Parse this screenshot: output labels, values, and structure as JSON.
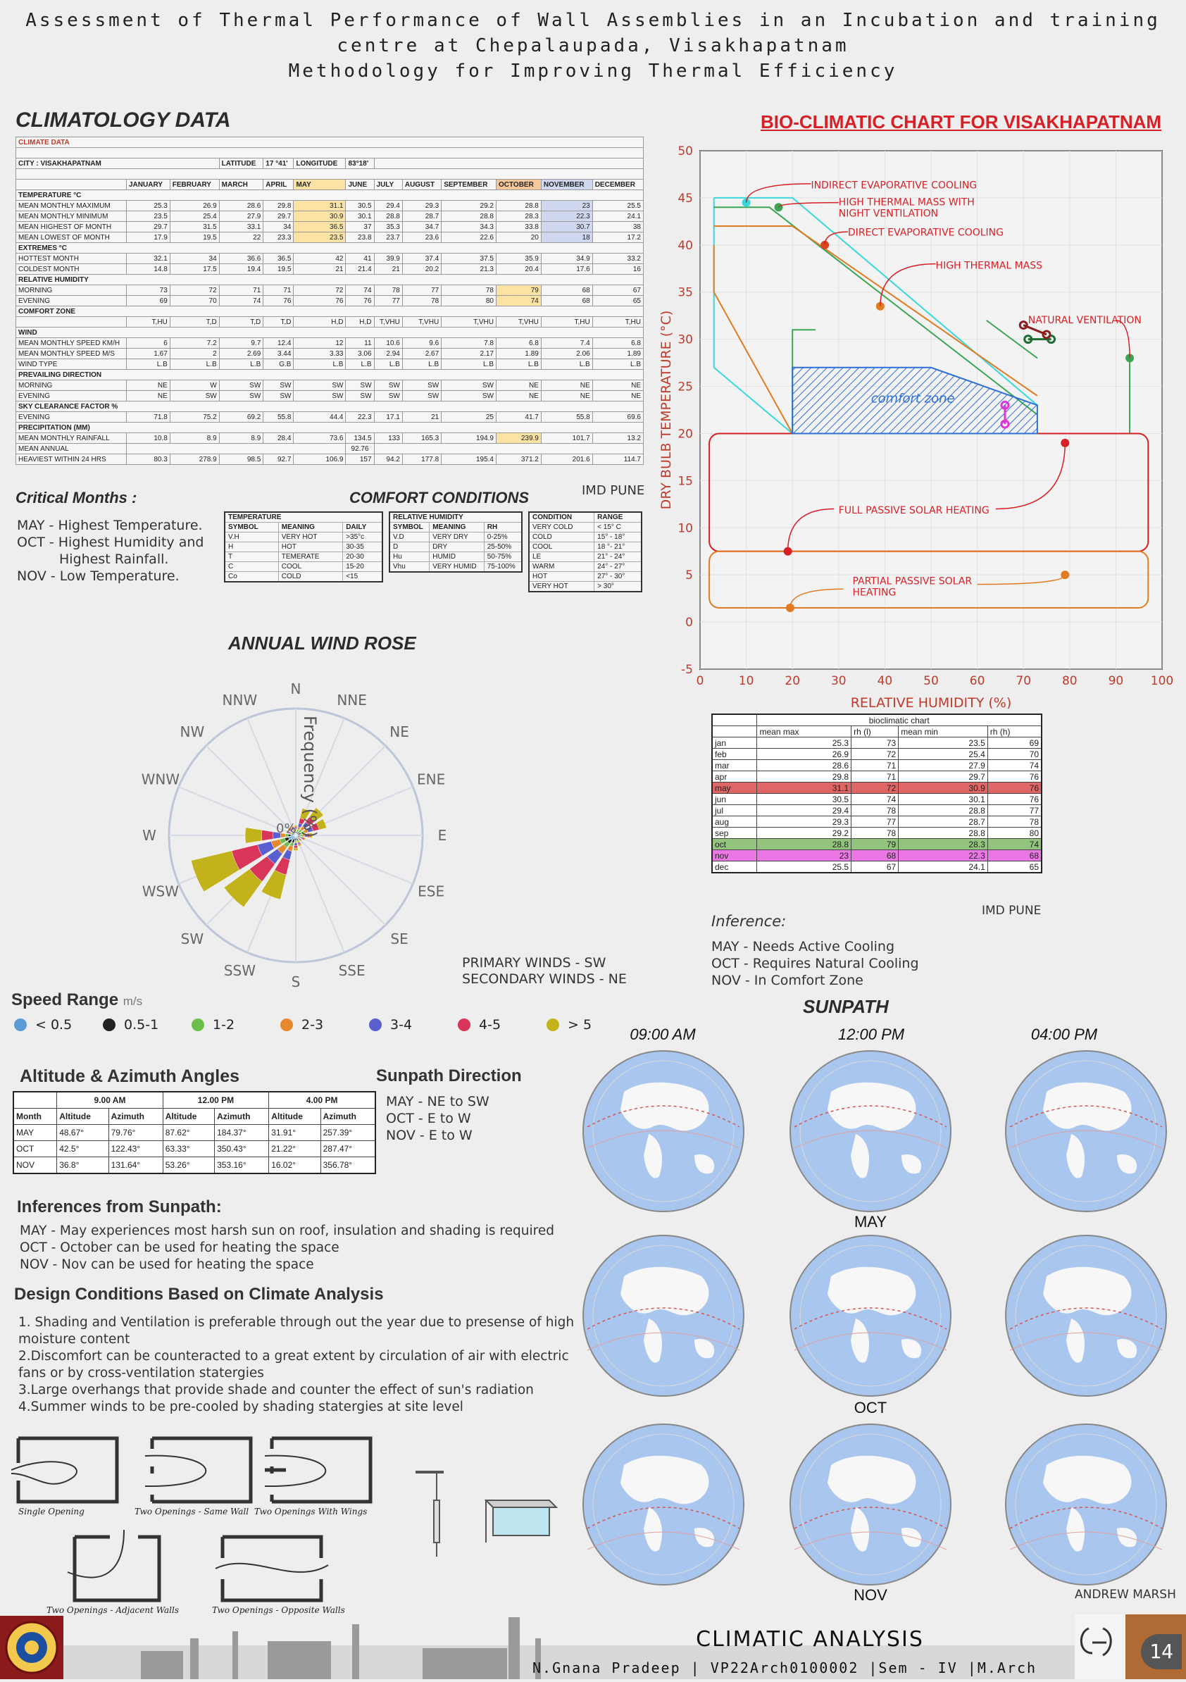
{
  "header": {
    "line1": "Assessment of Thermal Performance of Wall Assemblies in an Incubation and training",
    "line2": "centre at Chepalaupada, Visakhapatnam",
    "line3": "Methodology for Improving Thermal Efficiency"
  },
  "climatology": {
    "heading": "CLIMATOLOGY DATA",
    "table_title": "CLIMATE DATA",
    "city": "CITY : VISAKHAPATNAM",
    "latitude_label": "LATITUDE",
    "latitude": "17 °41'",
    "longitude_label": "LONGITUDE",
    "longitude": "83°18'",
    "months": [
      "JANUARY",
      "FEBRUARY",
      "MARCH",
      "APRIL",
      "MAY",
      "JUNE",
      "JULY",
      "AUGUST",
      "SEPTEMBER",
      "OCTOBER",
      "NOVEMBER",
      "DECEMBER"
    ],
    "rows": [
      {
        "type": "section",
        "label": "TEMPERATURE °C"
      },
      {
        "type": "data",
        "label": "MEAN MONTHLY MAXIMUM",
        "values": [
          "25.3",
          "26.9",
          "28.6",
          "29.8",
          "31.1",
          "30.5",
          "29.4",
          "29.3",
          "29.2",
          "28.8",
          "23",
          "25.5"
        ]
      },
      {
        "type": "data",
        "label": "MEAN MONTHLY MINIMUM",
        "values": [
          "23.5",
          "25.4",
          "27.9",
          "29.7",
          "30.9",
          "30.1",
          "28.8",
          "28.7",
          "28.8",
          "28.3",
          "22.3",
          "24.1"
        ]
      },
      {
        "type": "data",
        "label": "MEAN HIGHEST OF MONTH",
        "values": [
          "29.7",
          "31.5",
          "33.1",
          "34",
          "36.5",
          "37",
          "35.3",
          "34.7",
          "34.3",
          "33.8",
          "30.7",
          "38"
        ]
      },
      {
        "type": "data",
        "label": "MEAN LOWEST OF MONTH",
        "values": [
          "17.9",
          "19.5",
          "22",
          "23.3",
          "23.5",
          "23.8",
          "23.7",
          "23.6",
          "22.6",
          "20",
          "18",
          "17.2"
        ]
      },
      {
        "type": "section",
        "label": "EXTREMES °C"
      },
      {
        "type": "data",
        "label": "HOTTEST MONTH",
        "values": [
          "32.1",
          "34",
          "36.6",
          "36.5",
          "42",
          "41",
          "39.9",
          "37.4",
          "37.5",
          "35.9",
          "34.9",
          "33.2"
        ]
      },
      {
        "type": "data",
        "label": "COLDEST MONTH",
        "values": [
          "14.8",
          "17.5",
          "19.4",
          "19.5",
          "21",
          "21.4",
          "21",
          "20.2",
          "21.3",
          "20.4",
          "17.6",
          "16"
        ]
      },
      {
        "type": "section",
        "label": "RELATIVE HUMIDITY"
      },
      {
        "type": "data",
        "label": "MORNING",
        "values": [
          "73",
          "72",
          "71",
          "71",
          "72",
          "74",
          "78",
          "77",
          "78",
          "79",
          "68",
          "67"
        ]
      },
      {
        "type": "data",
        "label": "EVENING",
        "values": [
          "69",
          "70",
          "74",
          "76",
          "76",
          "76",
          "77",
          "78",
          "80",
          "74",
          "68",
          "65"
        ]
      },
      {
        "type": "section",
        "label": "COMFORT ZONE"
      },
      {
        "type": "data",
        "label": "",
        "values": [
          "T,HU",
          "T,D",
          "T,D",
          "T,D",
          "H,D",
          "H,D",
          "T,VHU",
          "T,VHU",
          "T,VHU",
          "T,VHU",
          "T,HU",
          "T,HU"
        ]
      },
      {
        "type": "section",
        "label": "WIND"
      },
      {
        "type": "data",
        "label": "MEAN MONTHLY SPEED KM/H",
        "values": [
          "6",
          "7.2",
          "9.7",
          "12.4",
          "12",
          "11",
          "10.6",
          "9.6",
          "7.8",
          "6.8",
          "7.4",
          "6.8"
        ]
      },
      {
        "type": "data",
        "label": "MEAN MONTHLY SPEED M/S",
        "values": [
          "1.67",
          "2",
          "2.69",
          "3.44",
          "3.33",
          "3.06",
          "2.94",
          "2.67",
          "2.17",
          "1.89",
          "2.06",
          "1.89"
        ]
      },
      {
        "type": "data",
        "label": "WIND TYPE",
        "values": [
          "L.B",
          "L.B",
          "L.B",
          "G.B",
          "L.B",
          "L.B",
          "L.B",
          "L.B",
          "L.B",
          "L.B",
          "L.B",
          "L.B"
        ]
      },
      {
        "type": "section",
        "label": "PREVAILING DIRECTION"
      },
      {
        "type": "data",
        "label": "MORNING",
        "values": [
          "NE",
          "W",
          "SW",
          "SW",
          "SW",
          "SW",
          "SW",
          "SW",
          "SW",
          "NE",
          "NE",
          "NE"
        ]
      },
      {
        "type": "data",
        "label": "EVENING",
        "values": [
          "NE",
          "SW",
          "SW",
          "SW",
          "SW",
          "SW",
          "SW",
          "SW",
          "SW",
          "NE",
          "NE",
          "NE"
        ]
      },
      {
        "type": "section",
        "label": "SKY CLEARANCE FACTOR %"
      },
      {
        "type": "data",
        "label": "EVENING",
        "values": [
          "71.8",
          "75.2",
          "69.2",
          "55.8",
          "44.4",
          "22.3",
          "17.1",
          "21",
          "25",
          "41.7",
          "55.8",
          "69.6"
        ]
      },
      {
        "type": "section",
        "label": "PRECIPITATION (MM)"
      },
      {
        "type": "data",
        "label": "MEAN MONTHLY RAINFALL",
        "values": [
          "10.8",
          "8.9",
          "8.9",
          "28.4",
          "73.6",
          "134.5",
          "133",
          "165.3",
          "194.9",
          "239.9",
          "101.7",
          "13.2"
        ]
      },
      {
        "type": "annual",
        "label": "MEAN ANNUAL",
        "value": "92.76"
      },
      {
        "type": "data",
        "label": "HEAVIEST WITHIN 24 HRS",
        "values": [
          "80.3",
          "278.9",
          "98.5",
          "92.7",
          "106.9",
          "157",
          "94.2",
          "177.8",
          "195.4",
          "371.2",
          "201.6",
          "114.7"
        ]
      }
    ],
    "source": "IMD PUNE"
  },
  "critical": {
    "heading": "Critical Months :",
    "lines": [
      "MAY - Highest Temperature.",
      "OCT - Highest Humidity and",
      "Highest Rainfall.",
      "NOV - Low Temperature."
    ]
  },
  "comfort": {
    "heading": "COMFORT CONDITIONS",
    "temp": {
      "title": "TEMPERATURE",
      "headers": [
        "SYMBOL",
        "MEANING",
        "DAILY"
      ],
      "rows": [
        [
          "V.H",
          "VERY HOT",
          ">35°c"
        ],
        [
          "H",
          "HOT",
          "30-35"
        ],
        [
          "T",
          "TEMERATE",
          "20-30"
        ],
        [
          "C",
          "COOL",
          "15-20"
        ],
        [
          "Co",
          "COLD",
          "<15"
        ]
      ]
    },
    "rh": {
      "title": "RELATIVE HUMIDITY",
      "headers": [
        "SYMBOL",
        "MEANING",
        "RH"
      ],
      "rows": [
        [
          "V.D",
          "VERY DRY",
          "0-25%"
        ],
        [
          "D",
          "DRY",
          "25-50%"
        ],
        [
          "Hu",
          "HUMID",
          "50-75%"
        ],
        [
          "Vhu",
          "VERY HUMID",
          "75-100%"
        ]
      ]
    },
    "cond": {
      "headers": [
        "CONDITION",
        "RANGE"
      ],
      "rows": [
        [
          "VERY COLD",
          "< 15° C"
        ],
        [
          "COLD",
          "15° - 18°"
        ],
        [
          "COOL",
          "18 °- 21°"
        ],
        [
          "LE",
          "21° - 24°"
        ],
        [
          "WARM",
          "24° - 27°"
        ],
        [
          "HOT",
          "27° - 30°"
        ],
        [
          "VERY HOT",
          "> 30°"
        ]
      ]
    }
  },
  "windrose": {
    "heading": "ANNUAL WIND ROSE",
    "axis_label": "Frequency (%)",
    "zero_label": "0%",
    "directions": [
      "N",
      "NNE",
      "NE",
      "ENE",
      "E",
      "ESE",
      "SE",
      "SSE",
      "S",
      "SSW",
      "SW",
      "WSW",
      "W",
      "WNW",
      "NW",
      "NNW"
    ],
    "primary": "PRIMARY WINDS - SW",
    "secondary": "SECONDARY WINDS - NE",
    "speed_title": "Speed Range",
    "speed_unit": "m/s",
    "speed_ranges": [
      {
        "label": "< 0.5",
        "color": "#5b9bd5"
      },
      {
        "label": "0.5-1",
        "color": "#222222"
      },
      {
        "label": "1-2",
        "color": "#6abf4b"
      },
      {
        "label": "2-3",
        "color": "#e68a2e"
      },
      {
        "label": "3-4",
        "color": "#5a5fd0"
      },
      {
        "label": "4-5",
        "color": "#d9345a"
      },
      {
        "label": "> 5",
        "color": "#c2b21c"
      }
    ],
    "petal_lengths": [
      [
        0.02,
        0.02,
        0.02,
        0.02,
        0.02,
        0.02,
        0.02,
        0.03,
        0.02,
        0.03,
        0.05,
        0.06,
        0.04,
        0.02,
        0.02,
        0.02
      ],
      [
        0.03,
        0.03,
        0.03,
        0.04,
        0.03,
        0.03,
        0.02,
        0.04,
        0.04,
        0.06,
        0.08,
        0.09,
        0.06,
        0.03,
        0.03,
        0.03
      ],
      [
        0.04,
        0.05,
        0.06,
        0.07,
        0.05,
        0.04,
        0.03,
        0.05,
        0.05,
        0.09,
        0.12,
        0.13,
        0.08,
        0.04,
        0.04,
        0.04
      ],
      [
        0.05,
        0.07,
        0.09,
        0.1,
        0.07,
        0.05,
        0.04,
        0.06,
        0.06,
        0.13,
        0.18,
        0.2,
        0.12,
        0.05,
        0.05,
        0.05
      ],
      [
        0.06,
        0.1,
        0.13,
        0.14,
        0.09,
        0.06,
        0.05,
        0.07,
        0.08,
        0.2,
        0.28,
        0.31,
        0.18,
        0.06,
        0.06,
        0.06
      ],
      [
        0.07,
        0.14,
        0.18,
        0.19,
        0.11,
        0.07,
        0.05,
        0.08,
        0.1,
        0.32,
        0.45,
        0.52,
        0.27,
        0.07,
        0.07,
        0.07
      ],
      [
        0.08,
        0.22,
        0.27,
        0.25,
        0.13,
        0.08,
        0.06,
        0.09,
        0.12,
        0.52,
        0.7,
        0.85,
        0.4,
        0.08,
        0.08,
        0.08
      ]
    ]
  },
  "bioclimatic": {
    "heading": "BIO-CLIMATIC CHART FOR VISAKHAPATNAM",
    "comfort_zone": "comfort zone",
    "strategies": [
      "INDIRECT EVAPORATIVE COOLING",
      "HIGH THERMAL MASS WITH",
      "NIGHT VENTILATION",
      "DIRECT EVAPORATIVE COOLING",
      "HIGH THERMAL MASS",
      "NATURAL VENTILATION",
      "FULL PASSIVE SOLAR HEATING",
      "PARTIAL PASSIVE SOLAR",
      "HEATING"
    ],
    "colors": {
      "axis": "#c0392b",
      "comfort": "#2e6fd6",
      "cyan": "#3ad8dc",
      "green": "#3aa655",
      "orange": "#e07b22",
      "red": "#d91f26"
    }
  },
  "chart_data": {
    "type": "scatter",
    "xlabel": "RELATIVE HUMIDITY (%)",
    "ylabel": "DRY BULB TEMPERATURE (°C)",
    "xlim": [
      0,
      100
    ],
    "ylim": [
      -5,
      50
    ],
    "xticks": [
      "0",
      "10",
      "20",
      "30",
      "40",
      "50",
      "60",
      "70",
      "80",
      "90",
      "100"
    ],
    "yticks": [
      "-5",
      "0",
      "5",
      "10",
      "15",
      "20",
      "25",
      "30",
      "35",
      "40",
      "45",
      "50"
    ],
    "grid": true,
    "comfort_zone_polygon": [
      [
        20,
        20
      ],
      [
        20,
        27
      ],
      [
        50,
        27
      ],
      [
        73,
        23
      ],
      [
        73,
        20
      ]
    ],
    "series": [
      {
        "points": [
          [
            66,
            21
          ],
          [
            66,
            23
          ]
        ],
        "color": "#e035d6"
      },
      {
        "points": [
          [
            71,
            30
          ],
          [
            76,
            30
          ]
        ],
        "color": "#1e6b35"
      },
      {
        "points": [
          [
            70,
            31.5
          ],
          [
            75,
            30.5
          ]
        ],
        "color": "#8b1e1e"
      }
    ],
    "markers": [
      {
        "x": 10,
        "y": 44.5,
        "color": "#3ad8dc"
      },
      {
        "x": 17,
        "y": 44,
        "color": "#3aa655"
      },
      {
        "x": 27,
        "y": 40,
        "color": "#d9431e"
      },
      {
        "x": 39,
        "y": 33.5,
        "color": "#e07b22"
      },
      {
        "x": 93,
        "y": 28,
        "color": "#3aa655"
      },
      {
        "x": 79,
        "y": 19,
        "color": "#d91f26"
      },
      {
        "x": 19,
        "y": 7.5,
        "color": "#d91f26"
      },
      {
        "x": 79,
        "y": 5,
        "color": "#e07b22"
      },
      {
        "x": 19.5,
        "y": 1.5,
        "color": "#e07b22"
      }
    ]
  },
  "bio_table": {
    "title": "bioclimatic chart",
    "headers": [
      "",
      "mean max",
      "rh (l)",
      "mean min",
      "rh (h)"
    ],
    "rows": [
      [
        "jan",
        "25.3",
        "73",
        "23.5",
        "69"
      ],
      [
        "feb",
        "26.9",
        "72",
        "25.4",
        "70"
      ],
      [
        "mar",
        "28.6",
        "71",
        "27.9",
        "74"
      ],
      [
        "apr",
        "29.8",
        "71",
        "29.7",
        "76"
      ],
      [
        "may",
        "31.1",
        "72",
        "30.9",
        "76"
      ],
      [
        "jun",
        "30.5",
        "74",
        "30.1",
        "76"
      ],
      [
        "jul",
        "29.4",
        "78",
        "28.8",
        "77"
      ],
      [
        "aug",
        "29.3",
        "77",
        "28.7",
        "78"
      ],
      [
        "sep",
        "29.2",
        "78",
        "28.8",
        "80"
      ],
      [
        "oct",
        "28.8",
        "79",
        "28.3",
        "74"
      ],
      [
        "nov",
        "23",
        "68",
        "22.3",
        "68"
      ],
      [
        "dec",
        "25.5",
        "67",
        "24.1",
        "65"
      ]
    ],
    "highlights": {
      "may": "#e06666",
      "oct": "#93c47d",
      "nov": "#ea77e3"
    },
    "source": "IMD PUNE"
  },
  "inference": {
    "heading": "Inference:",
    "lines": [
      "MAY - Needs Active Cooling",
      "OCT - Requires Natural Cooling",
      "NOV - In Comfort Zone"
    ]
  },
  "altaz": {
    "heading": "Altitude & Azimuth Angles",
    "times": [
      "9.00 AM",
      "12.00 PM",
      "4.00 PM"
    ],
    "sub": [
      "Month",
      "Altitude",
      "Azimuth",
      "Altitude",
      "Azimuth",
      "Altitude",
      "Azimuth"
    ],
    "rows": [
      [
        "MAY",
        "48.67°",
        "79.76°",
        "87.62°",
        "184.37°",
        "31.91°",
        "257.39°"
      ],
      [
        "OCT",
        "42.5°",
        "122.43°",
        "63.33°",
        "350.43°",
        "21.22°",
        "287.47°"
      ],
      [
        "NOV",
        "36.8°",
        "131.64°",
        "53.26°",
        "353.16°",
        "16.02°",
        "356.78°"
      ]
    ]
  },
  "sun_dir": {
    "heading": "Sunpath Direction",
    "lines": [
      "MAY - NE to SW",
      "OCT - E to W",
      "NOV - E to W"
    ]
  },
  "sun_inf": {
    "heading": "Inferences from Sunpath:",
    "lines": [
      "MAY - May experiences most harsh sun on roof, insulation and shading is required",
      "OCT - October can be used for heating the space",
      "NOV - Nov can be used for heating the space"
    ]
  },
  "design": {
    "heading": "Design Conditions Based on Climate Analysis",
    "lines": [
      "1. Shading and Ventilation is preferable through out the year due to presense of high",
      "moisture content",
      "2.Discomfort can be counteracted to a great extent by circulation of air with electric",
      "fans or by cross-ventilation statergies",
      "3.Large overhangs that provide shade and counter the effect of sun's radiation",
      "4.Summer winds to be pre-cooled by shading statergies at site level"
    ]
  },
  "sketches": {
    "labels": [
      "Single Opening",
      "Two Openings - Same Wall",
      "Two Openings With Wings",
      "Two Openings - Adjacent Walls",
      "Two Openings - Opposite Walls"
    ]
  },
  "sunpath": {
    "heading": "SUNPATH",
    "times": [
      "09:00 AM",
      "12:00 PM",
      "04:00 PM"
    ],
    "months": [
      "MAY",
      "OCT",
      "NOV"
    ],
    "credit": "ANDREW MARSH"
  },
  "footer": {
    "title": "CLIMATIC  ANALYSIS",
    "author": "N.Gnana Pradeep | VP22Arch0100002 |Sem - IV |M.Arch",
    "page": "14"
  }
}
